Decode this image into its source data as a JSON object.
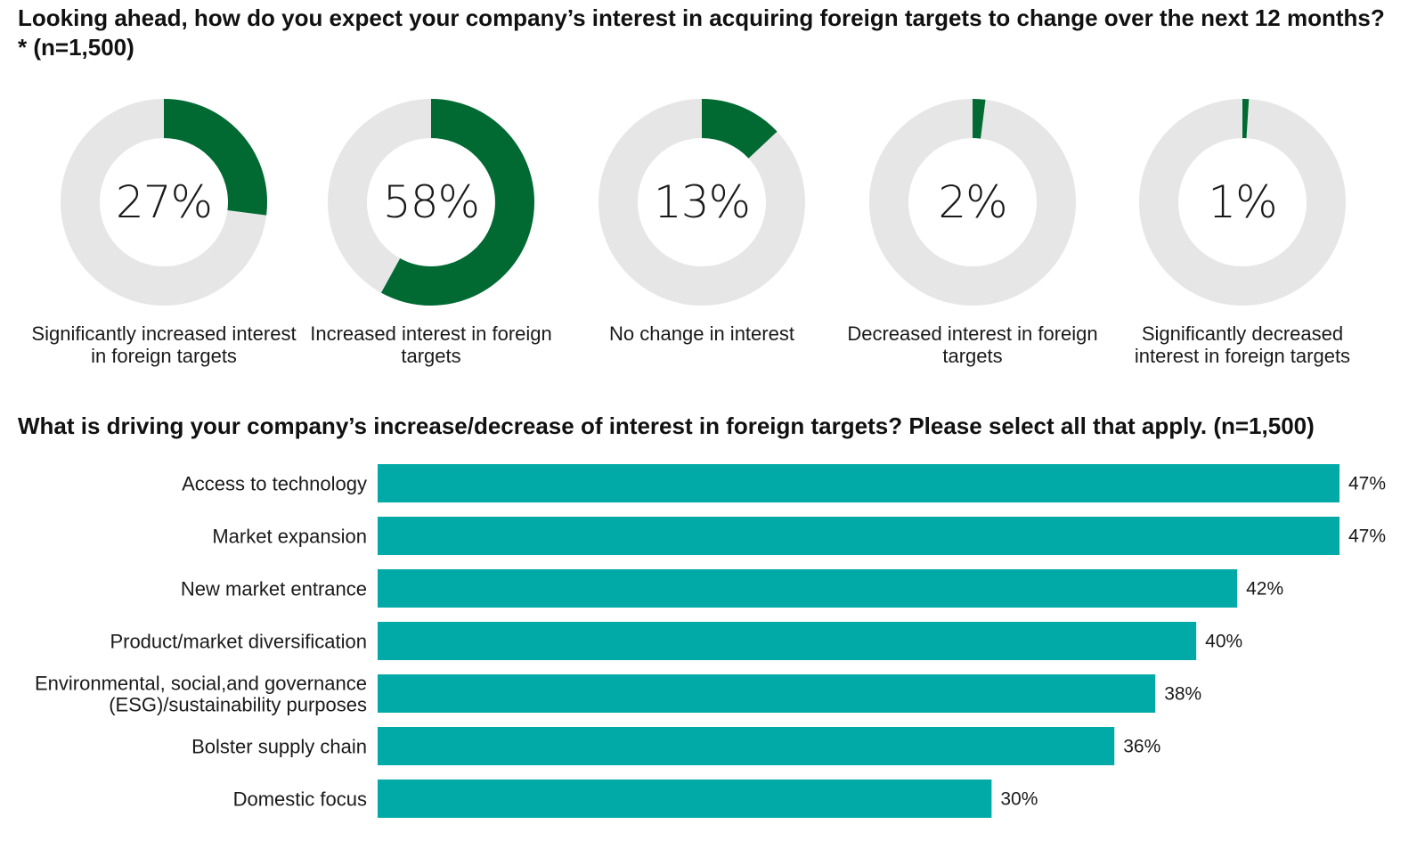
{
  "top_title": "Looking ahead, how do you expect your company’s interest in acquiring foreign targets to change over the next 12 months?* (n=1,500)",
  "bottom_title": "What is driving your company’s increase/decrease of interest in foreign targets? Please select all that apply. (n=1,500)",
  "colors": {
    "donut_fill": "#006a32",
    "donut_track": "#e6e6e6",
    "bar_fill": "#02aaa7"
  },
  "chart_data": [
    {
      "type": "pie",
      "variant": "donut-set",
      "items": [
        {
          "pct_label": "27%",
          "value": 27,
          "label": "Significantly increased interest in foreign targets"
        },
        {
          "pct_label": "58%",
          "value": 58,
          "label": "Increased interest in foreign targets"
        },
        {
          "pct_label": "13%",
          "value": 13,
          "label": "No change in interest"
        },
        {
          "pct_label": "2%",
          "value": 2,
          "label": "Decreased interest in foreign targets"
        },
        {
          "pct_label": "1%",
          "value": 1,
          "label": "Significantly decreased interest in foreign targets"
        }
      ]
    },
    {
      "type": "bar",
      "orientation": "horizontal",
      "categories": [
        "Access to technology",
        "Market expansion",
        "New market entrance",
        "Product/market diversification",
        "Environmental, social,and governance (ESG)/sustainability purposes",
        "Bolster supply chain",
        "Domestic focus"
      ],
      "category_lines": [
        [
          "Access to technology"
        ],
        [
          "Market expansion"
        ],
        [
          "New market entrance"
        ],
        [
          "Product/market diversification"
        ],
        [
          "Environmental, social,and governance",
          "(ESG)/sustainability purposes"
        ],
        [
          "Bolster supply chain"
        ],
        [
          "Domestic focus"
        ]
      ],
      "values": [
        47,
        47,
        42,
        40,
        38,
        36,
        30
      ],
      "value_labels": [
        "47%",
        "47%",
        "42%",
        "40%",
        "38%",
        "36%",
        "30%"
      ],
      "xlim": [
        0,
        47
      ],
      "grid": false
    }
  ]
}
